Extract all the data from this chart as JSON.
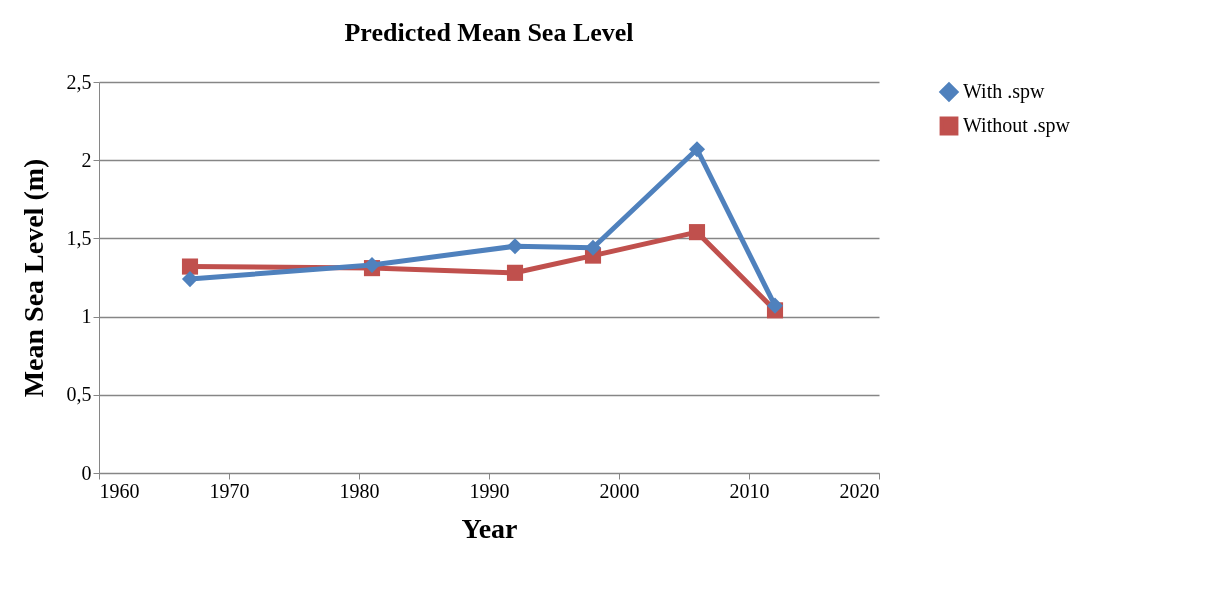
{
  "chart_data": {
    "type": "line",
    "title": "Predicted Mean Sea Level",
    "xlabel": "Year",
    "ylabel": "Mean Sea Level (m)",
    "x": [
      1967,
      1981,
      1992,
      1998,
      2006,
      2012
    ],
    "series": [
      {
        "name": "With .spw",
        "color": "#4f81bd",
        "marker": "diamond",
        "values": [
          1.24,
          1.33,
          1.45,
          1.44,
          2.07,
          1.07
        ]
      },
      {
        "name": "Without .spw",
        "color": "#c0504d",
        "marker": "square",
        "values": [
          1.32,
          1.31,
          1.28,
          1.39,
          1.54,
          1.04
        ]
      }
    ],
    "xlim": [
      1960,
      2020
    ],
    "xticks": [
      1960,
      1970,
      1980,
      1990,
      2000,
      2010,
      2020
    ],
    "ylim": [
      0,
      2.5
    ],
    "yticks": [
      0,
      {
        "value": 0.5,
        "label": "0,5"
      },
      1,
      {
        "value": 1.5,
        "label": "1,5"
      },
      2,
      {
        "value": 2.5,
        "label": "2,5"
      }
    ],
    "grid": "y",
    "legend": "right",
    "line_style": "solid"
  }
}
